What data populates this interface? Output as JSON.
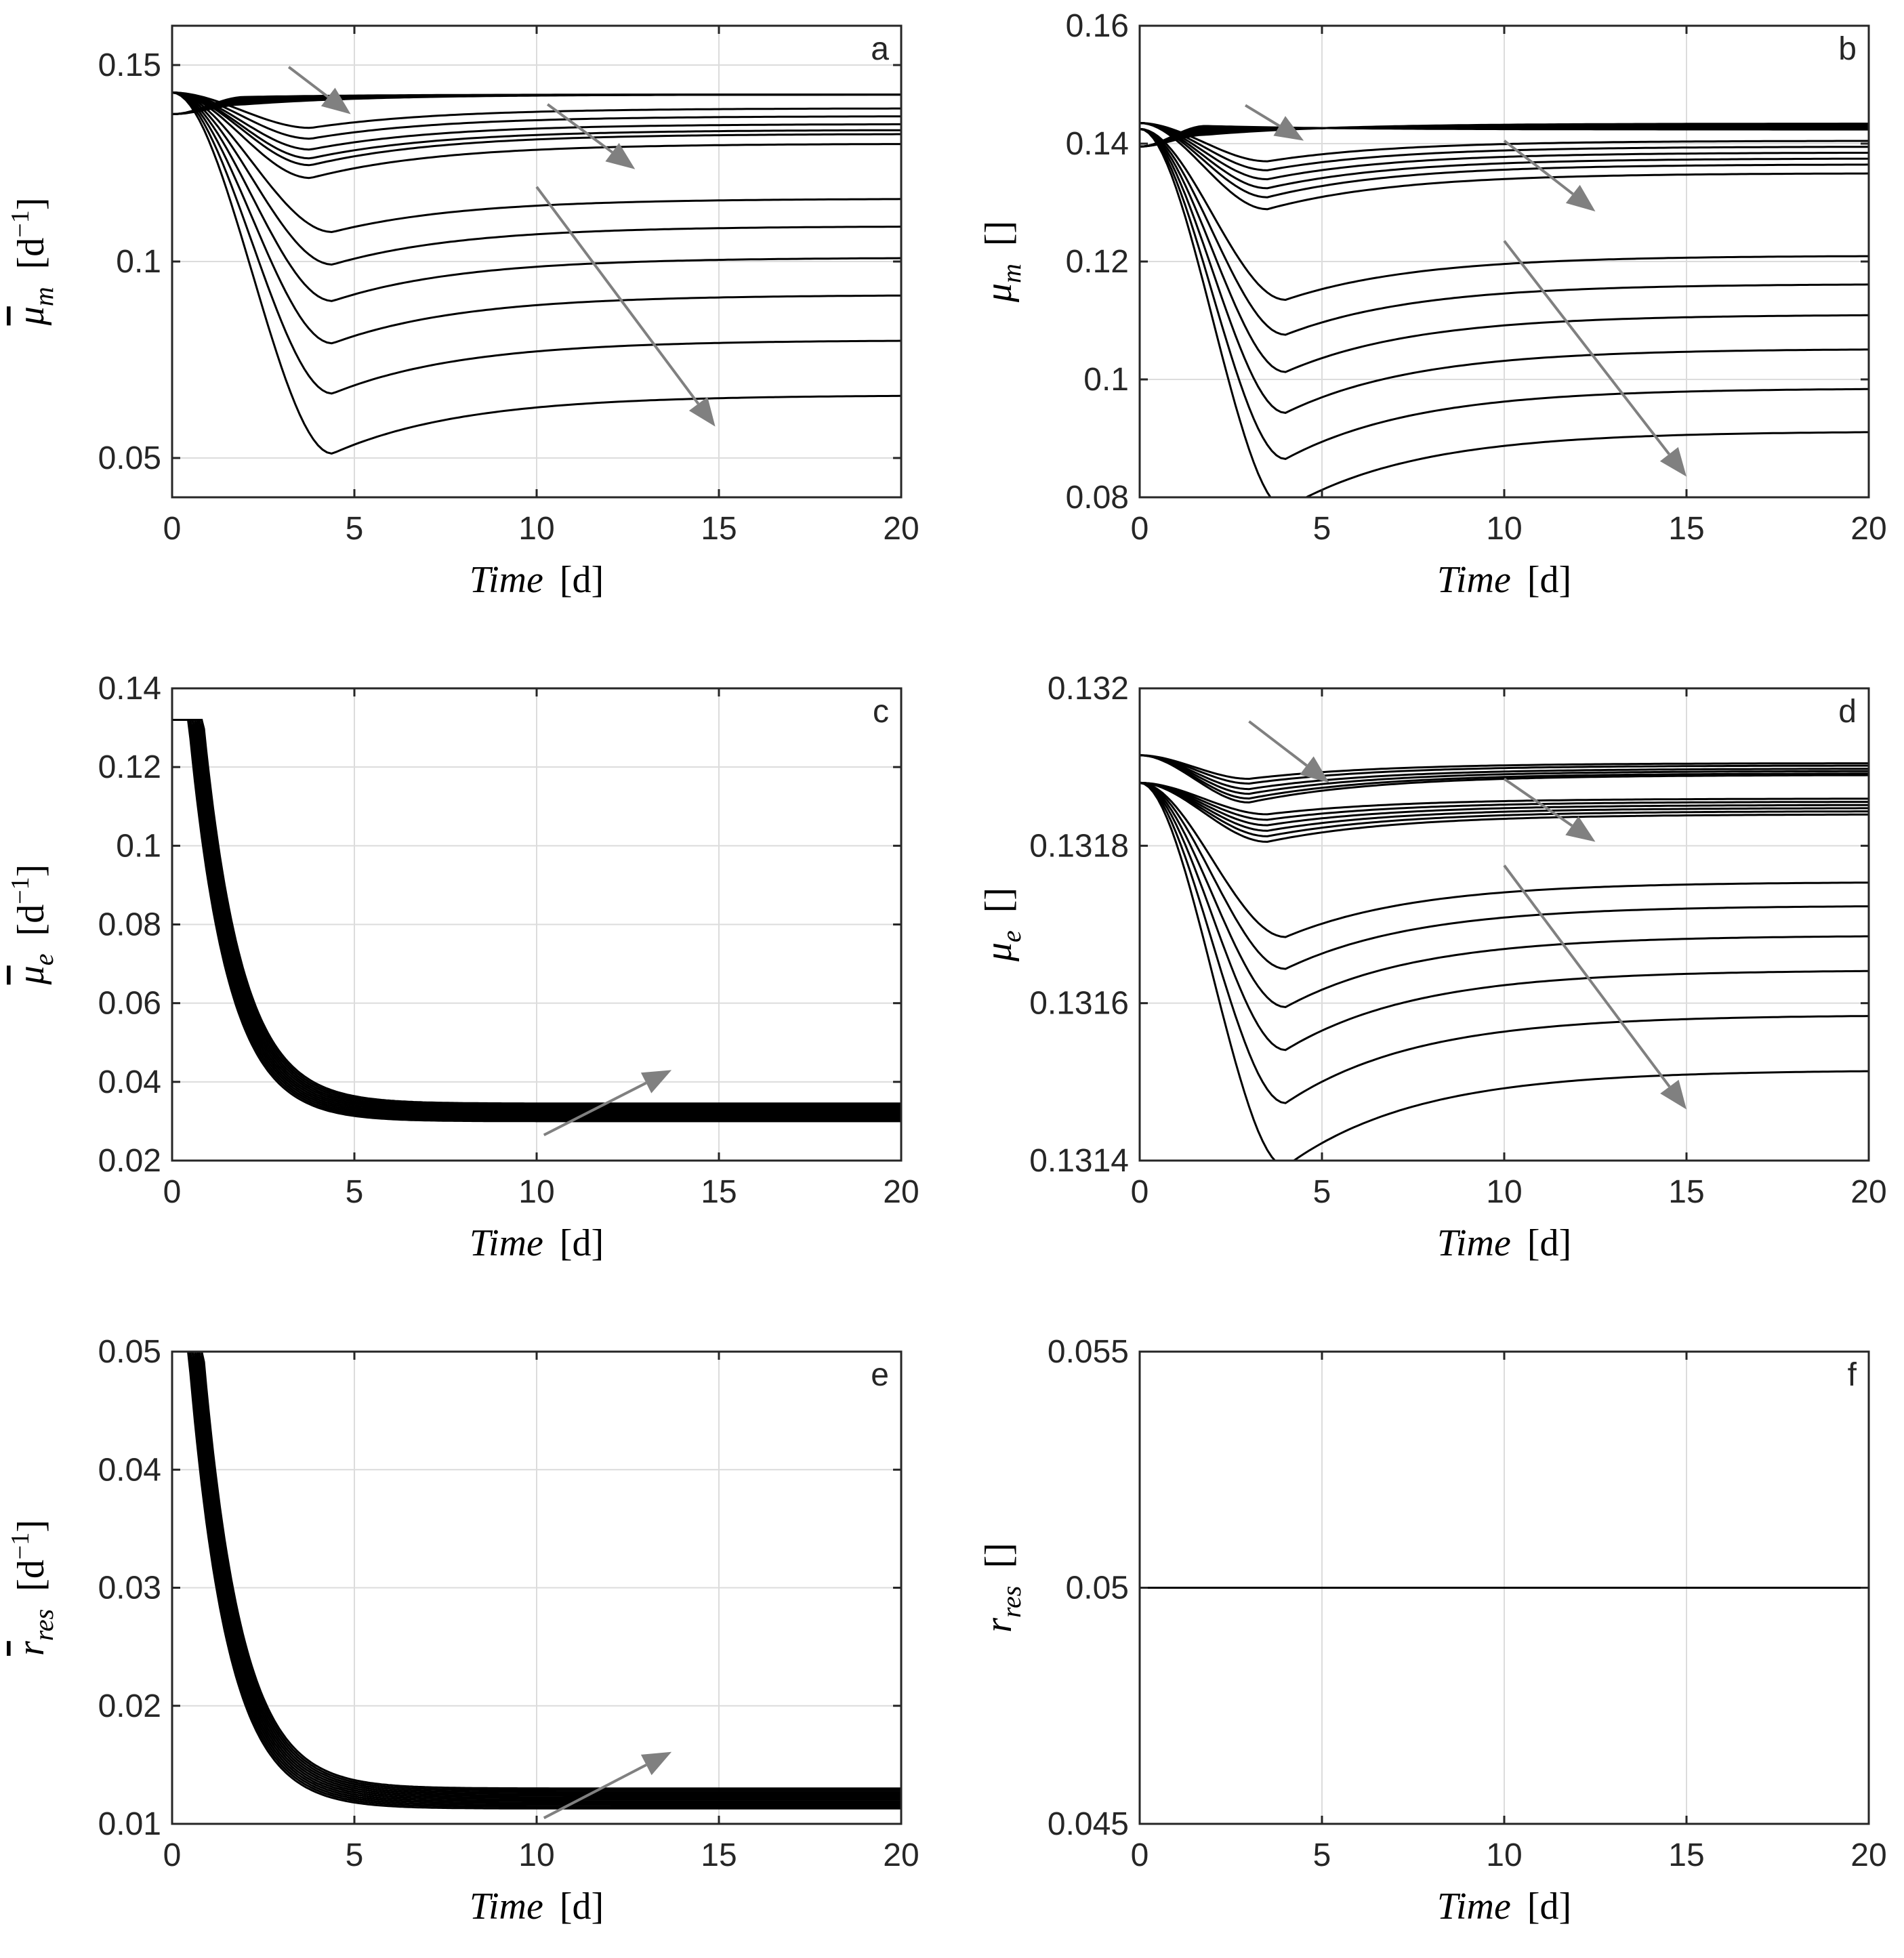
{
  "chart_data": [
    {
      "panel": "a",
      "type": "line",
      "x_range": [
        0,
        20
      ],
      "ylim": [
        0.04,
        0.16
      ],
      "x_ticks": [
        0,
        5,
        10,
        15,
        20
      ],
      "x_tick_labels": [
        "0",
        "5",
        "10",
        "15",
        "20"
      ],
      "y_ticks": [
        0.05,
        0.1,
        0.15
      ],
      "y_tick_labels": [
        "0.05",
        "0.1",
        "0.15"
      ],
      "xlabel": {
        "sym": "Time",
        "unit": "[d]"
      },
      "ylabel": {
        "sym": "μ",
        "sub": "m",
        "bar": true,
        "unit": "[d",
        "unit_sup": "−1",
        "unit_end": "]"
      },
      "grid": true,
      "groups": [
        {
          "count": 6,
          "start": 0.1375,
          "dip": -0.0025,
          "tmin": 2.0,
          "final": [
            0.1425,
            0.1425,
            0.1425,
            0.1425,
            0.1425,
            0.1425
          ]
        },
        {
          "count": 6,
          "start": 0.143,
          "dip": 0.005,
          "tmin": 3.8,
          "final": [
            0.139,
            0.137,
            0.135,
            0.1335,
            0.1325,
            0.13
          ]
        },
        {
          "count": 6,
          "start": 0.143,
          "dip": 0.0085,
          "tmin": 4.4,
          "final": [
            0.116,
            0.109,
            0.101,
            0.0915,
            0.08,
            0.066
          ]
        }
      ],
      "arrows": [
        {
          "from": [
            3.2,
            0.1495
          ],
          "to": [
            4.9,
            0.1375
          ]
        },
        {
          "from": [
            10.3,
            0.14
          ],
          "to": [
            12.7,
            0.1235
          ]
        },
        {
          "from": [
            10.0,
            0.119
          ],
          "to": [
            14.9,
            0.058
          ]
        }
      ]
    },
    {
      "panel": "b",
      "type": "line",
      "x_range": [
        0,
        20
      ],
      "ylim": [
        0.08,
        0.16
      ],
      "x_ticks": [
        0,
        5,
        10,
        15,
        20
      ],
      "x_tick_labels": [
        "0",
        "5",
        "10",
        "15",
        "20"
      ],
      "y_ticks": [
        0.08,
        0.1,
        0.12,
        0.14,
        0.16
      ],
      "y_tick_labels": [
        "0.08",
        "0.1",
        "0.12",
        "0.14",
        "0.16"
      ],
      "xlabel": {
        "sym": "Time",
        "unit": "[d]"
      },
      "ylabel": {
        "sym": "μ",
        "sub": "m",
        "bar": false,
        "unit": "[]",
        "unit_sup": "",
        "unit_end": ""
      },
      "grid": true,
      "groups": [
        {
          "count": 6,
          "start": 0.1395,
          "dip": -0.002,
          "tmin": 1.8,
          "final": [
            0.1434,
            0.1432,
            0.143,
            0.1428,
            0.1426,
            0.1424
          ]
        },
        {
          "count": 6,
          "start": 0.1435,
          "dip": 0.0035,
          "tmin": 3.5,
          "final": [
            0.1405,
            0.1395,
            0.1385,
            0.1375,
            0.1365,
            0.135
          ]
        },
        {
          "count": 6,
          "start": 0.1425,
          "dip": 0.0075,
          "tmin": 4.0,
          "final": [
            0.121,
            0.1162,
            0.111,
            0.1052,
            0.0985,
            0.0912
          ]
        }
      ],
      "arrows": [
        {
          "from": [
            2.9,
            0.1465
          ],
          "to": [
            4.5,
            0.1405
          ]
        },
        {
          "from": [
            10.0,
            0.1405
          ],
          "to": [
            12.5,
            0.1285
          ]
        },
        {
          "from": [
            10.0,
            0.1235
          ],
          "to": [
            15.0,
            0.0835
          ]
        }
      ]
    },
    {
      "panel": "c",
      "type": "line",
      "x_range": [
        0,
        20
      ],
      "ylim": [
        0.02,
        0.14
      ],
      "x_ticks": [
        0,
        5,
        10,
        15,
        20
      ],
      "x_tick_labels": [
        "0",
        "5",
        "10",
        "15",
        "20"
      ],
      "y_ticks": [
        0.02,
        0.04,
        0.06,
        0.08,
        0.1,
        0.12,
        0.14
      ],
      "y_tick_labels": [
        "0.02",
        "0.04",
        "0.06",
        "0.08",
        "0.1",
        "0.12",
        "0.14"
      ],
      "xlabel": {
        "sym": "Time",
        "unit": "[d]"
      },
      "ylabel": {
        "sym": "μ",
        "sub": "e",
        "bar": true,
        "unit": "[d",
        "unit_sup": "−1",
        "unit_end": "]"
      },
      "grid": true,
      "decay": {
        "count": 12,
        "start": 0.132,
        "t0": [
          0.45,
          0.85
        ],
        "tau": 1.05,
        "final": [
          0.03,
          0.0345
        ]
      },
      "arrows": [
        {
          "from": [
            10.2,
            0.0265
          ],
          "to": [
            13.7,
            0.043
          ]
        }
      ]
    },
    {
      "panel": "d",
      "type": "line",
      "x_range": [
        0,
        20
      ],
      "ylim": [
        0.1314,
        0.132
      ],
      "x_ticks": [
        0,
        5,
        10,
        15,
        20
      ],
      "x_tick_labels": [
        "0",
        "5",
        "10",
        "15",
        "20"
      ],
      "y_ticks": [
        0.1314,
        0.1316,
        0.1318,
        0.132
      ],
      "y_tick_labels": [
        "0.1314",
        "0.1316",
        "0.1318",
        "0.132"
      ],
      "xlabel": {
        "sym": "Time",
        "unit": "[d]"
      },
      "ylabel": {
        "sym": "μ",
        "sub": "e",
        "bar": false,
        "unit": "[]",
        "unit_sup": "",
        "unit_end": ""
      },
      "grid": true,
      "groups": [
        {
          "count": 6,
          "start": 0.131915,
          "dip": 2e-05,
          "tmin": 3.0,
          "final": [
            0.131905,
            0.131902,
            0.131898,
            0.131895,
            0.131892,
            0.13189
          ]
        },
        {
          "count": 6,
          "start": 0.13188,
          "dip": 2e-05,
          "tmin": 3.5,
          "final": [
            0.13186,
            0.131856,
            0.131852,
            0.131848,
            0.131844,
            0.13184
          ]
        },
        {
          "count": 6,
          "start": 0.13188,
          "dip": 7e-05,
          "tmin": 4.0,
          "final": [
            0.131754,
            0.131724,
            0.131686,
            0.131642,
            0.131585,
            0.131515
          ]
        }
      ],
      "arrows": [
        {
          "from": [
            3.0,
            0.131958
          ],
          "to": [
            5.2,
            0.13188
          ]
        },
        {
          "from": [
            10.0,
            0.131885
          ],
          "to": [
            12.5,
            0.131805
          ]
        },
        {
          "from": [
            10.0,
            0.131775
          ],
          "to": [
            15.0,
            0.131465
          ]
        }
      ]
    },
    {
      "panel": "e",
      "type": "line",
      "x_range": [
        0,
        20
      ],
      "ylim": [
        0.01,
        0.05
      ],
      "x_ticks": [
        0,
        5,
        10,
        15,
        20
      ],
      "x_tick_labels": [
        "0",
        "5",
        "10",
        "15",
        "20"
      ],
      "y_ticks": [
        0.01,
        0.02,
        0.03,
        0.04,
        0.05
      ],
      "y_tick_labels": [
        "0.01",
        "0.02",
        "0.03",
        "0.04",
        "0.05"
      ],
      "xlabel": {
        "sym": "Time",
        "unit": "[d]"
      },
      "ylabel": {
        "sym": "r",
        "sub": "res",
        "bar": true,
        "unit": "[d",
        "unit_sup": "−1",
        "unit_end": "]"
      },
      "grid": true,
      "decay": {
        "count": 12,
        "start": 0.05,
        "t0": [
          0.45,
          0.85
        ],
        "tau": 1.05,
        "final": [
          0.0113,
          0.013
        ]
      },
      "arrows": [
        {
          "from": [
            10.2,
            0.0105
          ],
          "to": [
            13.7,
            0.0161
          ]
        }
      ]
    },
    {
      "panel": "f",
      "type": "line",
      "x_range": [
        0,
        20
      ],
      "ylim": [
        0.045,
        0.055
      ],
      "x_ticks": [
        0,
        5,
        10,
        15,
        20
      ],
      "x_tick_labels": [
        "0",
        "5",
        "10",
        "15",
        "20"
      ],
      "y_ticks": [
        0.045,
        0.05,
        0.055
      ],
      "y_tick_labels": [
        "0.045",
        "0.05",
        "0.055"
      ],
      "xlabel": {
        "sym": "Time",
        "unit": "[d]"
      },
      "ylabel": {
        "sym": "r",
        "sub": "res",
        "bar": false,
        "unit": "[]",
        "unit_sup": "",
        "unit_end": ""
      },
      "grid": true,
      "constant": {
        "value": 0.05
      },
      "arrows": []
    }
  ]
}
